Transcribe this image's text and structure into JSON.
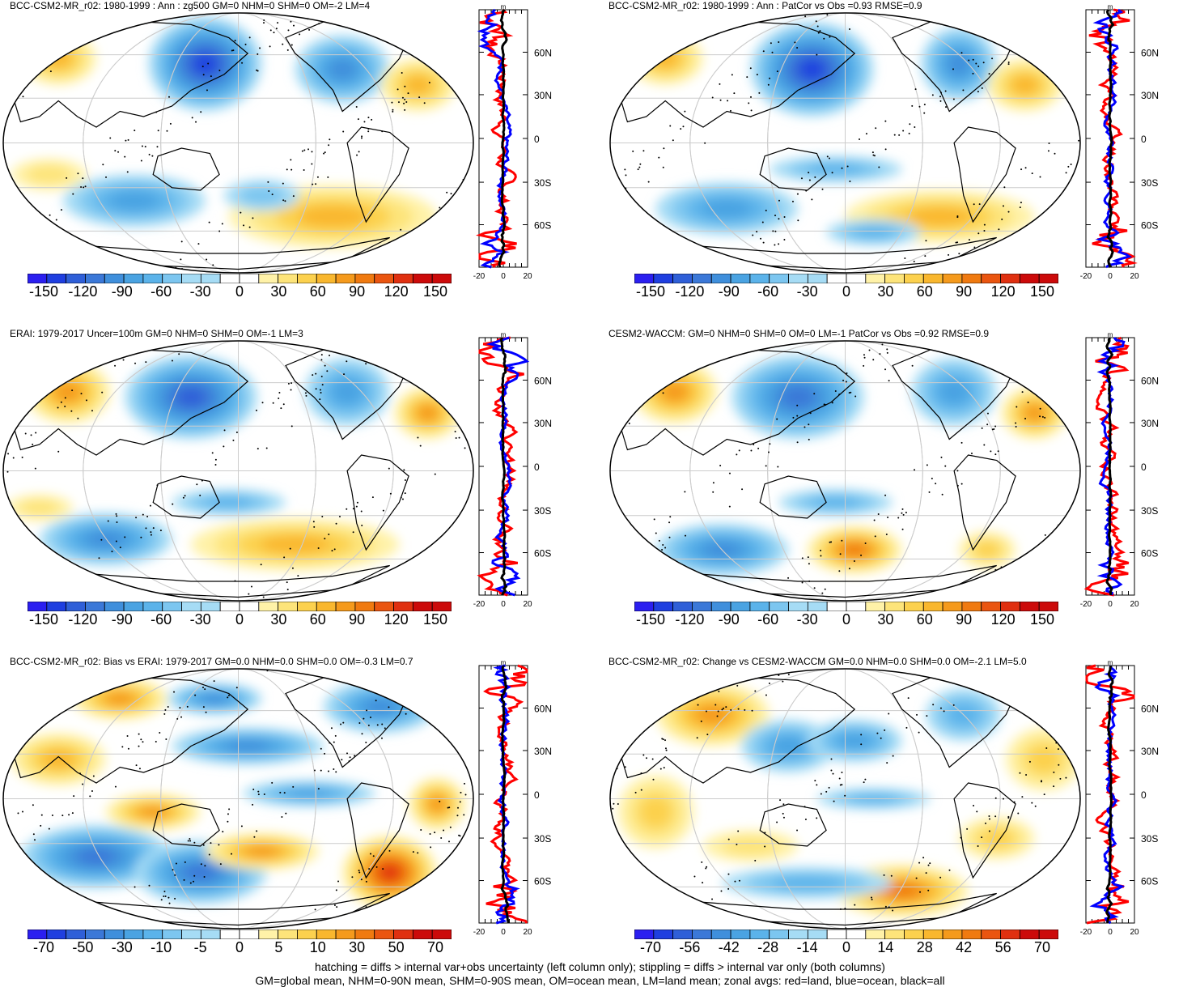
{
  "panels": [
    {
      "title": "BCC-CSM2-MR_r02: 1980-1999 : Ann : zg500 GM=0 NHM=0 SHM=0 OM=-2 LM=4",
      "scale": "main",
      "variant": "a"
    },
    {
      "title": "BCC-CSM2-MR_r02: 1980-1999 : Ann : PatCor vs Obs =0.93 RMSE=0.9",
      "scale": "main",
      "variant": "b"
    },
    {
      "title": "ERAI: 1979-2017 Uncer=100m GM=0 NHM=0 SHM=0 OM=-1 LM=3",
      "scale": "main",
      "variant": "c"
    },
    {
      "title": "CESM2-WACCM: GM=0 NHM=0 SHM=0 OM=0 LM=-1 PatCor vs Obs =0.92 RMSE=0.9",
      "scale": "main",
      "variant": "d"
    },
    {
      "title": "BCC-CSM2-MR_r02: Bias vs ERAI: 1979-2017 GM=0.0 NHM=0.0 SHM=0.0 OM=-0.3 LM=0.7",
      "scale": "bias",
      "variant": "e"
    },
    {
      "title": "BCC-CSM2-MR_r02: Change vs CESM2-WACCM GM=0.0 NHM=0.0 SHM=0.0 OM=-2.1 LM=5.0",
      "scale": "change",
      "variant": "f"
    }
  ],
  "colorbars": {
    "main": [
      "-150",
      "-120",
      "-90",
      "-60",
      "-30",
      "0",
      "30",
      "60",
      "90",
      "120",
      "150"
    ],
    "bias": [
      "-70",
      "-50",
      "-30",
      "-10",
      "-5",
      "0",
      "5",
      "10",
      "30",
      "50",
      "70"
    ],
    "change": [
      "-70",
      "-56",
      "-42",
      "-28",
      "-14",
      "0",
      "14",
      "28",
      "42",
      "56",
      "70"
    ]
  },
  "colors": {
    "blues": [
      "#2b1ff0",
      "#1f3fe0",
      "#2f5fd8",
      "#3b78d8",
      "#3f8fdc",
      "#4aa3e2",
      "#5bb3ea",
      "#7cc6f0",
      "#a6dcf5"
    ],
    "reds": [
      "#fff2a8",
      "#fde47a",
      "#fcd14e",
      "#f9b72e",
      "#f59a1c",
      "#f07a10",
      "#ea5510",
      "#e03010",
      "#cc0a0a"
    ]
  },
  "zonal": {
    "unit": "m",
    "lat_labels": [
      "60N",
      "30N",
      "0",
      "30S",
      "60S"
    ],
    "x_labels": [
      "-20",
      "0",
      "20"
    ],
    "legend_colors": {
      "land": "#ff0000",
      "ocean": "#0000ff",
      "all": "#000000"
    }
  },
  "footer": {
    "line1": "hatching = diffs > internal var+obs uncertainty (left column only); stippling = diffs > internal var only (both columns)",
    "line2": "GM=global mean, NHM=0-90N mean, SHM=0-90S mean, OM=ocean mean, LM=land mean; zonal avgs: red=land, blue=ocean, black=all"
  }
}
